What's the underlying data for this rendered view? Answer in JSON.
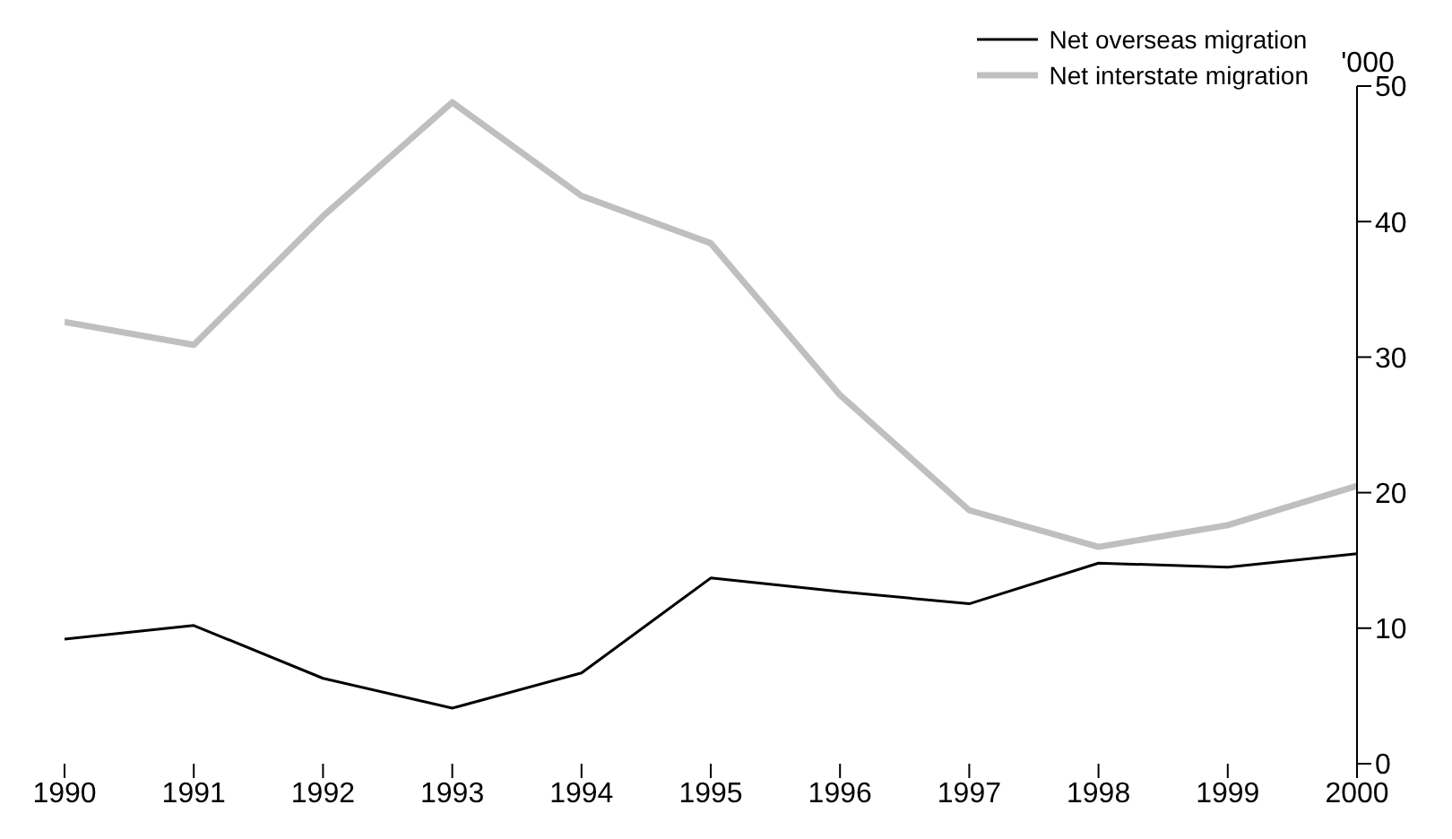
{
  "chart_data": {
    "type": "line",
    "ylabel": "'000",
    "x": [
      1990,
      1991,
      1992,
      1993,
      1994,
      1995,
      1996,
      1997,
      1998,
      1999,
      2000
    ],
    "series": [
      {
        "name": "Net overseas migration",
        "color": "#000000",
        "values": [
          9.2,
          10.2,
          6.3,
          4.1,
          6.7,
          13.7,
          12.7,
          11.8,
          14.8,
          14.5,
          15.5
        ]
      },
      {
        "name": "Net interstate migration",
        "color": "#bfbfbf",
        "values": [
          32.6,
          30.9,
          40.4,
          48.8,
          41.9,
          38.4,
          27.2,
          18.7,
          16.0,
          17.6,
          20.5
        ]
      }
    ],
    "xlim": [
      1990,
      2000
    ],
    "xticks": [
      1990,
      1991,
      1992,
      1993,
      1994,
      1995,
      1996,
      1997,
      1998,
      1999,
      2000
    ],
    "ylim": [
      0,
      50
    ],
    "yticks": [
      0,
      10,
      20,
      30,
      40,
      50
    ],
    "grid": false,
    "legend": "top right",
    "marker": "none",
    "line_style": "solid"
  }
}
